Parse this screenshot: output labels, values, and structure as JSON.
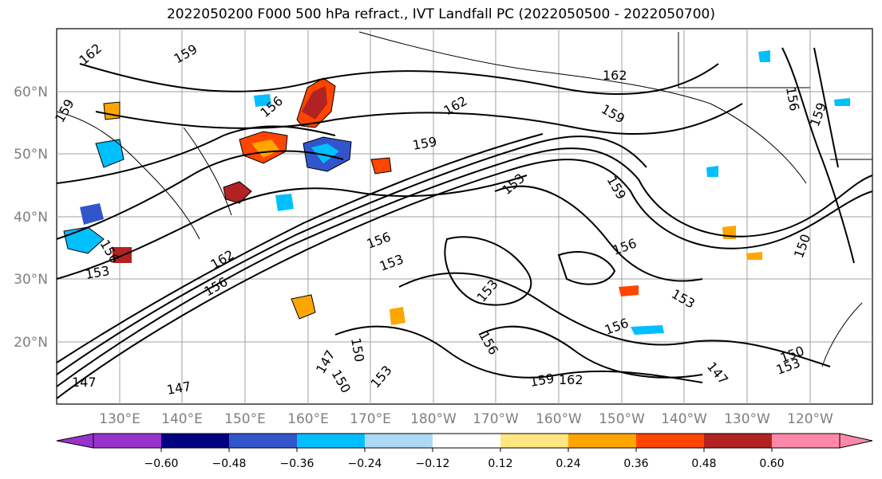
{
  "title": "2022050200 F000 500 hPa refract., IVT Landfall PC (2022050500 - 2022050700)",
  "map": {
    "lat_labels": [
      "60°N",
      "50°N",
      "40°N",
      "30°N",
      "20°N"
    ],
    "lon_labels": [
      "130°E",
      "140°E",
      "150°E",
      "160°E",
      "170°E",
      "180°W",
      "170°W",
      "160°W",
      "150°W",
      "140°W",
      "130°W",
      "120°W"
    ],
    "lat_range": [
      10,
      70
    ],
    "lon_range": [
      120,
      250
    ],
    "grid": true
  },
  "contour_labels": [
    "162",
    "159",
    "159",
    "156",
    "162",
    "159",
    "159",
    "153",
    "159",
    "156",
    "153",
    "162",
    "162",
    "156",
    "153",
    "159",
    "156",
    "153",
    "156",
    "150",
    "147",
    "150",
    "147",
    "147",
    "153",
    "156",
    "153",
    "159",
    "162",
    "150",
    "147",
    "150",
    "153",
    "156",
    "156"
  ],
  "colorbar": {
    "ticks": [
      "−0.60",
      "−0.48",
      "−0.36",
      "−0.24",
      "−0.12",
      "0.12",
      "0.24",
      "0.36",
      "0.48",
      "0.60"
    ],
    "colors": [
      "#9933cc",
      "#000080",
      "#3355cc",
      "#00bfff",
      "#add8f6",
      "#ffffff",
      "#ffe680",
      "#ffa500",
      "#ff4500",
      "#b22222",
      "#ff88aa"
    ]
  },
  "colors": {
    "land": "#ffffff",
    "grid": "#a0a0a0",
    "contour": "#000000"
  }
}
